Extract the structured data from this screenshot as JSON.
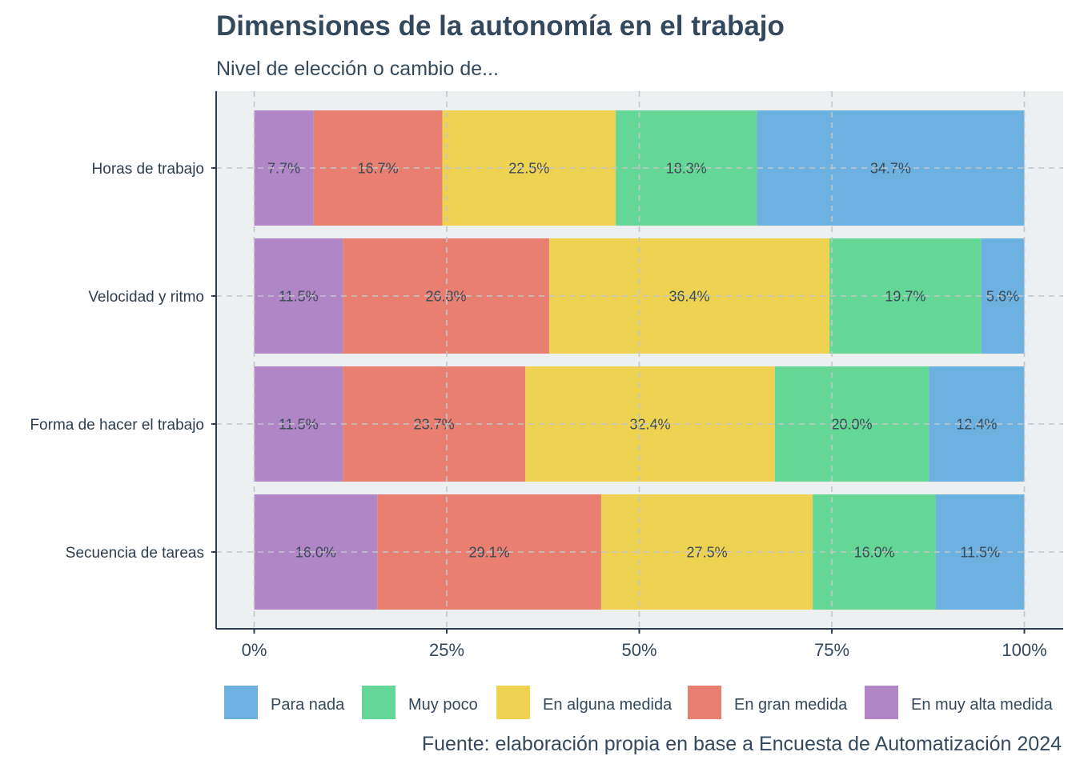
{
  "chart_data": {
    "type": "bar",
    "orientation": "horizontal",
    "stacked": "percent",
    "title": "Dimensiones de la autonomía en el trabajo",
    "subtitle": "Nivel de elección o cambio de...",
    "caption": "Fuente: elaboración propia en base a Encuesta de Automatización 2024",
    "categories": [
      "Horas de trabajo",
      "Velocidad y ritmo",
      "Forma de hacer el trabajo",
      "Secuencia de tareas"
    ],
    "xlim": [
      0,
      1
    ],
    "x_ticks": [
      0,
      0.25,
      0.5,
      0.75,
      1
    ],
    "x_tick_labels": [
      "0%",
      "25%",
      "50%",
      "75%",
      "100%"
    ],
    "grid": true,
    "legend_position": "bottom",
    "series": [
      {
        "name": "En muy alta medida",
        "color": "#b086c7",
        "values": [
          7.7,
          11.5,
          11.5,
          16.0
        ],
        "labels": [
          "7.7%",
          "11.5%",
          "11.5%",
          "16.0%"
        ]
      },
      {
        "name": "En gran medida",
        "color": "#e87f70",
        "values": [
          16.7,
          26.8,
          23.7,
          29.1
        ],
        "labels": [
          "16.7%",
          "26.8%",
          "23.7%",
          "29.1%"
        ]
      },
      {
        "name": "En alguna medida",
        "color": "#eed252",
        "values": [
          22.5,
          36.4,
          32.4,
          27.5
        ],
        "labels": [
          "22.5%",
          "36.4%",
          "32.4%",
          "27.5%"
        ]
      },
      {
        "name": "Muy poco",
        "color": "#64d695",
        "values": [
          18.3,
          19.7,
          20.0,
          16.0
        ],
        "labels": [
          "18.3%",
          "19.7%",
          "20.0%",
          "16.0%"
        ]
      },
      {
        "name": "Para nada",
        "color": "#6cb1e0",
        "values": [
          34.7,
          5.6,
          12.4,
          11.5
        ],
        "labels": [
          "34.7%",
          "5.6%",
          "12.4%",
          "11.5%"
        ]
      }
    ],
    "legend_order": [
      "Para nada",
      "Muy poco",
      "En alguna medida",
      "En gran medida",
      "En muy alta medida"
    ],
    "colors": {
      "panel_background": "#ecf0f1",
      "grid": "#c3c6c8",
      "axis": "#2c3e50",
      "text": "#34495e"
    }
  }
}
